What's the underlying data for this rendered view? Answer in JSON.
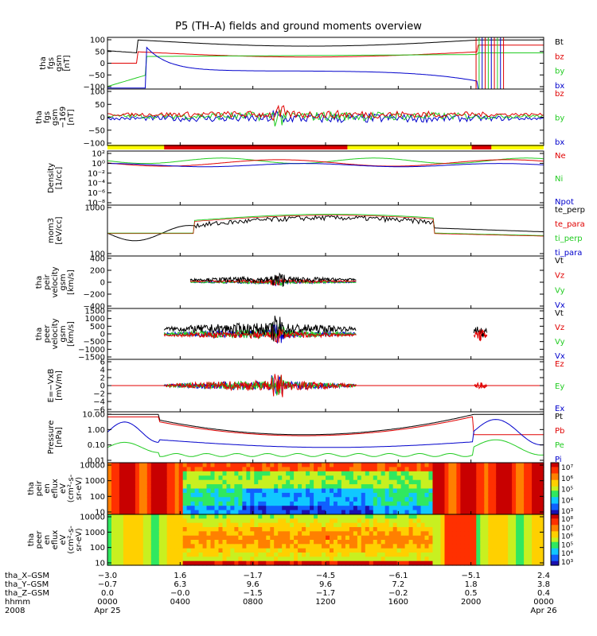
{
  "title": "P5 (TH–A) fields and ground moments overview",
  "x_axis": {
    "row_labels": [
      "tha_X–GSM",
      "tha_Y–GSM",
      "tha_Z–GSM",
      "hhmm",
      "2008"
    ],
    "ticks": [
      {
        "time": "0000",
        "date": "Apr 25",
        "x": "−3.0",
        "y": "−0.7",
        "z": "0.0"
      },
      {
        "time": "0400",
        "date": "",
        "x": "1.6",
        "y": "6.3",
        "z": "−0.0"
      },
      {
        "time": "0800",
        "date": "",
        "x": "−1.7",
        "y": "9.6",
        "z": "−1.5"
      },
      {
        "time": "1200",
        "date": "",
        "x": "−4.5",
        "y": "9.6",
        "z": "−1.7"
      },
      {
        "time": "1600",
        "date": "",
        "x": "−6.1",
        "y": "7.2",
        "z": "−0.2"
      },
      {
        "time": "2000",
        "date": "",
        "x": "−5.1",
        "y": "1.8",
        "z": "0.5"
      },
      {
        "time": "0000",
        "date": "Apr 26",
        "x": "2.4",
        "y": "3.8",
        "z": "0.4"
      }
    ]
  },
  "colors": {
    "black": "#000000",
    "red": "#e00000",
    "green": "#22cc22",
    "blue": "#0000cc",
    "yellow": "#ffff00"
  },
  "chart_data": [
    {
      "type": "line",
      "ylabel": [
        "tha",
        "fgs",
        "gsm",
        "[nT]"
      ],
      "ylim": [
        -100,
        100
      ],
      "ticks": [
        "100",
        "50",
        "0",
        "−50",
        "−100"
      ],
      "legend": [
        {
          "name": "Bt",
          "color": "black"
        },
        {
          "name": "bz",
          "color": "red"
        },
        {
          "name": "by",
          "color": "green"
        },
        {
          "name": "bx",
          "color": "blue"
        }
      ]
    },
    {
      "type": "line",
      "ylabel": [
        "tha",
        "fgs",
        "gsm",
        "−169",
        "[nT]"
      ],
      "ylim": [
        -100,
        100
      ],
      "ticks": [
        "100",
        "50",
        "0",
        "−50",
        "−100"
      ],
      "legend": [
        {
          "name": "bz",
          "color": "red"
        },
        {
          "name": "by",
          "color": "green"
        },
        {
          "name": "bx",
          "color": "blue"
        }
      ]
    },
    {
      "type": "line",
      "ylabel": [
        "Density",
        "[1/cc]"
      ],
      "scale": "log",
      "ticks": [
        "10²",
        "10⁰",
        "10⁻²",
        "10⁻⁴",
        "10⁻⁶",
        "10⁻⁸"
      ],
      "legend": [
        {
          "name": "Ne",
          "color": "red"
        },
        {
          "name": "Ni",
          "color": "green"
        },
        {
          "name": "Npot",
          "color": "blue"
        }
      ]
    },
    {
      "type": "line",
      "ylabel": [
        "mom3",
        "[eV/cc]"
      ],
      "scale": "log",
      "ticks": [
        "1000",
        "100"
      ],
      "legend": [
        {
          "name": "te_perp",
          "color": "black"
        },
        {
          "name": "te_para",
          "color": "red"
        },
        {
          "name": "ti_perp",
          "color": "green"
        },
        {
          "name": "ti_para",
          "color": "blue"
        }
      ]
    },
    {
      "type": "line",
      "ylabel": [
        "tha",
        "peir",
        "velocity",
        "gsm",
        "[km/s]"
      ],
      "ylim": [
        -400,
        400
      ],
      "ticks": [
        "400",
        "200",
        "0",
        "−200",
        "−400"
      ],
      "legend": [
        {
          "name": "Vt",
          "color": "black"
        },
        {
          "name": "Vz",
          "color": "red"
        },
        {
          "name": "Vy",
          "color": "green"
        },
        {
          "name": "Vx",
          "color": "blue"
        }
      ]
    },
    {
      "type": "line",
      "ylabel": [
        "tha",
        "peer",
        "velocity",
        "gsm",
        "[km/s]"
      ],
      "ylim": [
        -1500,
        1500
      ],
      "ticks": [
        "1500",
        "1000",
        "500",
        "0",
        "−500",
        "−1000",
        "−1500"
      ],
      "legend": [
        {
          "name": "Vt",
          "color": "black"
        },
        {
          "name": "Vz",
          "color": "red"
        },
        {
          "name": "Vy",
          "color": "green"
        },
        {
          "name": "Vx",
          "color": "blue"
        }
      ]
    },
    {
      "type": "line",
      "ylabel": [
        "E=−VxB",
        "[mV/m]"
      ],
      "ylim": [
        -6,
        6
      ],
      "ticks": [
        "6",
        "4",
        "2",
        "0",
        "−2",
        "−4",
        "−6"
      ],
      "legend": [
        {
          "name": "Ez",
          "color": "red"
        },
        {
          "name": "Ey",
          "color": "green"
        },
        {
          "name": "Ex",
          "color": "blue"
        }
      ]
    },
    {
      "type": "line",
      "ylabel": [
        "Pressure",
        "[nPa]"
      ],
      "scale": "log",
      "ticks": [
        "10.00",
        "1.00",
        "0.10",
        "0.01"
      ],
      "legend": [
        {
          "name": "Pt",
          "color": "black"
        },
        {
          "name": "Pb",
          "color": "red"
        },
        {
          "name": "Pe",
          "color": "green"
        },
        {
          "name": "Pi",
          "color": "blue"
        }
      ]
    },
    {
      "type": "heatmap",
      "ylabel": [
        "tha",
        "peir",
        "en",
        "eflux",
        "eV",
        "(cm²-s-",
        "sr-eV)"
      ],
      "ticks": [
        "10000",
        "1000",
        "100",
        "10"
      ],
      "colorbar": [
        "10⁷",
        "10⁶",
        "10⁵",
        "10⁴",
        "10³"
      ]
    },
    {
      "type": "heatmap",
      "ylabel": [
        "tha",
        "peer",
        "en",
        "eflux",
        "eV",
        "(cm²-s-",
        "sr-eV)"
      ],
      "ticks": [
        "10000",
        "1000",
        "100",
        "10"
      ],
      "colorbar": [
        "10⁸",
        "10⁷",
        "10⁶",
        "10⁵",
        "10⁴",
        "10³"
      ]
    }
  ]
}
